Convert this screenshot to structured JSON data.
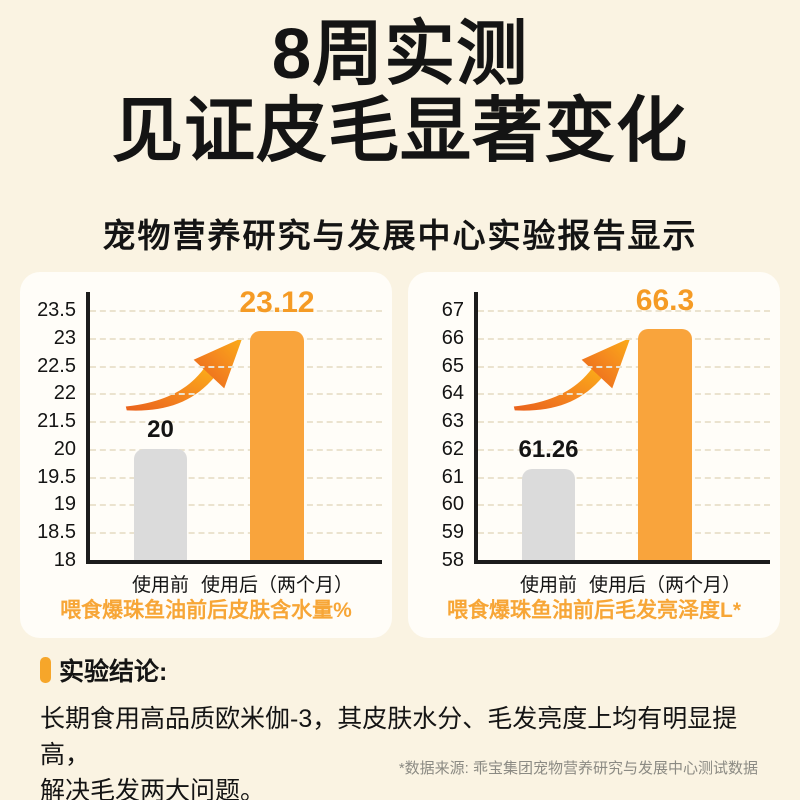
{
  "title": {
    "line1": "8周实测",
    "line2": "见证皮毛显著变化"
  },
  "subtitle": "宠物营养研究与发展中心实验报告显示",
  "chart_data": [
    {
      "type": "bar",
      "title": "喂食爆珠鱼油前后皮肤含水量%",
      "categories": [
        "使用前",
        "使用后（两个月）"
      ],
      "values": [
        20,
        23.12
      ],
      "value_labels": [
        "20",
        "23.12"
      ],
      "y_ticks": [
        "23.5",
        "23",
        "22.5",
        "22",
        "21.5",
        "20",
        "19.5",
        "19",
        "18.5",
        "18"
      ],
      "ylim": [
        18,
        23.5
      ],
      "grid": "dashed-horizontal",
      "legend": "none",
      "bar_colors": [
        "#DBDBDB",
        "#F9A43C"
      ],
      "value_label_colors": [
        "#141414",
        "#F59B25"
      ],
      "annotation": "growth-arrow"
    },
    {
      "type": "bar",
      "title": "喂食爆珠鱼油前后毛发亮泽度L*",
      "categories": [
        "使用前",
        "使用后（两个月）"
      ],
      "values": [
        61.26,
        66.3
      ],
      "value_labels": [
        "61.26",
        "66.3"
      ],
      "y_ticks": [
        "67",
        "66",
        "65",
        "64",
        "63",
        "62",
        "61",
        "60",
        "59",
        "58"
      ],
      "ylim": [
        58,
        67
      ],
      "grid": "dashed-horizontal",
      "legend": "none",
      "bar_colors": [
        "#DBDBDB",
        "#F9A43C"
      ],
      "value_label_colors": [
        "#141414",
        "#F59B25"
      ],
      "annotation": "growth-arrow"
    }
  ],
  "conclusion": {
    "heading": "实验结论:",
    "body": "长期食用高品质欧米伽-3，其皮肤水分、毛发亮度上均有明显提高，\n解决毛发两大问题。"
  },
  "footnote": "*数据来源: 乖宝集团宠物营养研究与发展中心测试数据",
  "colors": {
    "background": "#FAF3E2",
    "panel": "#FFFDF8",
    "bar_orange": "#F9A43C",
    "bar_gray": "#DBDBDB",
    "value_orange": "#F59B25",
    "caption_orange": "#F7A637",
    "marker_orange": "#F6A62A",
    "axis": "#1C1C1C",
    "text": "#141414",
    "footnote_gray": "#8B8A83",
    "arrow_gradient": [
      "#E9611C",
      "#FBAD18"
    ]
  }
}
